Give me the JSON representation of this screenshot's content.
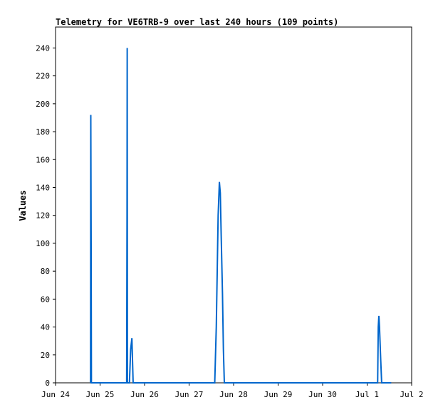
{
  "chart_data": {
    "type": "line",
    "title": "Telemetry for VE6TRB-9 over last 240 hours (109 points)",
    "xlabel": "",
    "ylabel": "Values",
    "xlim": [
      "2024-06-24T00:00",
      "2024-07-02T00:00"
    ],
    "ylim": [
      0,
      255
    ],
    "x_tick_labels": [
      "Jun 24",
      "Jun 25",
      "Jun 26",
      "Jun 27",
      "Jun 28",
      "Jun 29",
      "Jun 30",
      "Jul 1",
      "Jul 2"
    ],
    "y_ticks": [
      0,
      20,
      40,
      60,
      80,
      100,
      120,
      140,
      160,
      180,
      200,
      220,
      240
    ],
    "grid": false,
    "series": [
      {
        "color": "#0066cc",
        "points": [
          [
            "2024-06-24T18:52",
            0
          ],
          [
            "2024-06-24T19:00",
            192
          ],
          [
            "2024-06-24T19:12",
            96
          ],
          [
            "2024-06-24T19:20",
            0
          ],
          [
            "2024-06-25T14:00",
            0
          ],
          [
            "2024-06-25T14:20",
            0
          ],
          [
            "2024-06-25T14:32",
            120
          ],
          [
            "2024-06-25T14:38",
            240
          ],
          [
            "2024-06-25T14:45",
            0
          ],
          [
            "2024-06-25T15:50",
            0
          ],
          [
            "2024-06-25T16:30",
            24
          ],
          [
            "2024-06-25T17:10",
            32
          ],
          [
            "2024-06-25T17:50",
            0
          ],
          [
            "2024-06-27T13:50",
            0
          ],
          [
            "2024-06-27T14:40",
            40
          ],
          [
            "2024-06-27T15:10",
            80
          ],
          [
            "2024-06-27T15:40",
            120
          ],
          [
            "2024-06-27T16:20",
            144
          ],
          [
            "2024-06-27T16:50",
            136
          ],
          [
            "2024-06-27T17:20",
            104
          ],
          [
            "2024-06-27T18:00",
            64
          ],
          [
            "2024-06-27T18:30",
            24
          ],
          [
            "2024-06-27T19:00",
            0
          ],
          [
            "2024-07-01T05:40",
            0
          ],
          [
            "2024-07-01T06:00",
            40
          ],
          [
            "2024-07-01T06:20",
            48
          ],
          [
            "2024-07-01T06:40",
            40
          ],
          [
            "2024-07-01T07:20",
            16
          ],
          [
            "2024-07-01T07:50",
            0
          ],
          [
            "2024-07-01T13:00",
            0
          ]
        ]
      }
    ]
  }
}
